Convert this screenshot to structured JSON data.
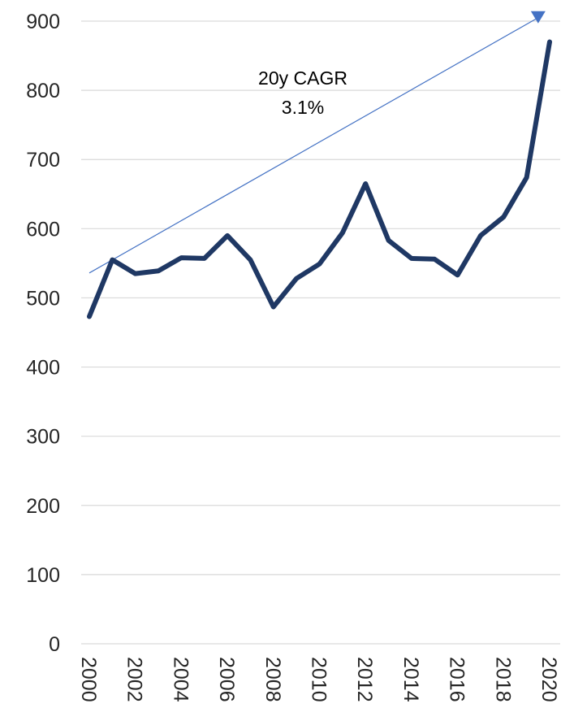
{
  "chart_data": {
    "type": "line",
    "title": "",
    "xlabel": "",
    "ylabel": "",
    "ylim": [
      0,
      900
    ],
    "yticks": [
      0,
      100,
      200,
      300,
      400,
      500,
      600,
      700,
      800,
      900
    ],
    "xlim": [
      2000,
      2020
    ],
    "xticks": [
      2000,
      2002,
      2004,
      2006,
      2008,
      2010,
      2012,
      2014,
      2016,
      2018,
      2020
    ],
    "grid": "horizontal",
    "legend": "none",
    "series": [
      {
        "x": [
          2000,
          2001,
          2002,
          2003,
          2004,
          2005,
          2006,
          2007,
          2008,
          2009,
          2010,
          2011,
          2012,
          2013,
          2014,
          2015,
          2016,
          2017,
          2018,
          2019,
          2020
        ],
        "values": [
          473,
          555,
          535,
          539,
          558,
          557,
          590,
          555,
          487,
          528,
          549,
          594,
          665,
          583,
          557,
          556,
          533,
          590,
          617,
          674,
          870
        ],
        "color": "#1f3864"
      }
    ],
    "trendline": {
      "from": {
        "x": 2000,
        "y": 536
      },
      "to": {
        "x": 2019.5,
        "y": 905
      },
      "color": "#4472c4",
      "arrow": "end"
    },
    "annotation": {
      "line1": "20y CAGR",
      "line2": "3.1%"
    }
  }
}
